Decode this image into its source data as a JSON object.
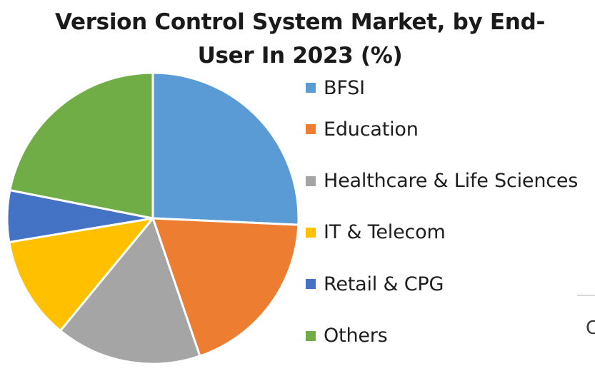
{
  "chart_data": {
    "type": "pie",
    "title": "Version Control System Market, by End-User In 2023 (%)",
    "title_lines": [
      "Version Control System Market, by End-",
      "User In 2023 (%)"
    ],
    "categories": [
      "BFSI",
      "Education",
      "Healthcare & Life Sciences",
      "IT & Telecom",
      "Retail & CPG",
      "Others"
    ],
    "values": [
      27,
      20,
      17,
      12,
      6,
      23
    ],
    "unit": "%",
    "colors": [
      "#5b9bd5",
      "#ed7d31",
      "#a5a5a5",
      "#ffc000",
      "#4472c4",
      "#70ad47"
    ],
    "start_angle_deg": 0,
    "direction": "clockwise",
    "legend_position": "right",
    "data_labels": false
  },
  "edge_fragment": {
    "text": "C"
  }
}
